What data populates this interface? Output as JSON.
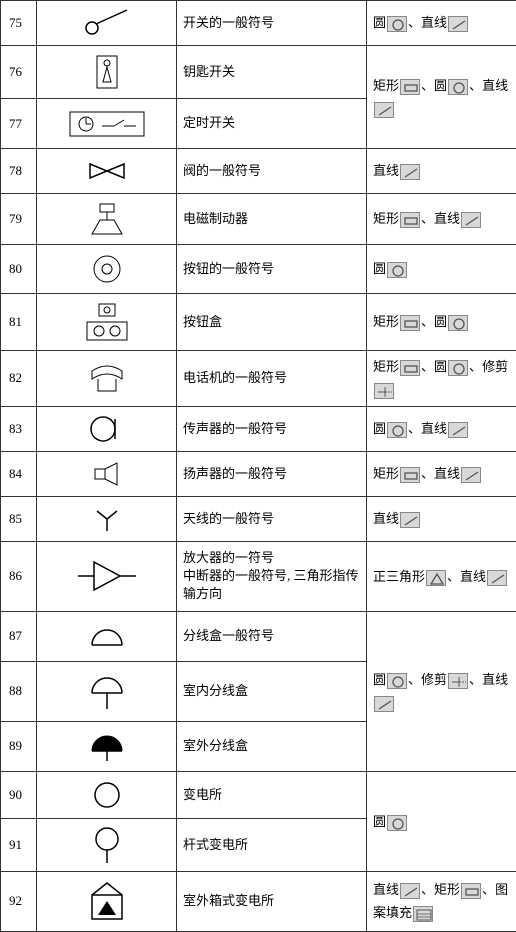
{
  "rows": [
    {
      "num": "75",
      "desc": "开关的一般符号"
    },
    {
      "num": "76",
      "desc": "钥匙开关"
    },
    {
      "num": "77",
      "desc": "定时开关"
    },
    {
      "num": "78",
      "desc": "阀的一般符号"
    },
    {
      "num": "79",
      "desc": "电磁制动器"
    },
    {
      "num": "80",
      "desc": "按钮的一般符号"
    },
    {
      "num": "81",
      "desc": "按钮盒"
    },
    {
      "num": "82",
      "desc": "电话机的一般符号"
    },
    {
      "num": "83",
      "desc": "传声器的一般符号"
    },
    {
      "num": "84",
      "desc": "扬声器的一般符号"
    },
    {
      "num": "85",
      "desc": "天线的一般符号"
    },
    {
      "num": "86",
      "desc": "放大器的一符号\n中断器的一般符号, 三角形指传输方向"
    },
    {
      "num": "87",
      "desc": "分线盒一般符号"
    },
    {
      "num": "88",
      "desc": "室内分线盒"
    },
    {
      "num": "89",
      "desc": "室外分线盒"
    },
    {
      "num": "90",
      "desc": "变电所"
    },
    {
      "num": "91",
      "desc": "杆式变电所"
    },
    {
      "num": "92",
      "desc": "室外箱式变电所"
    }
  ],
  "tool_labels": {
    "circle": "圆",
    "line": "直线",
    "rect": "矩形",
    "tri": "正三角形",
    "trim": "修剪",
    "pattern": "图案填充",
    "sep": "、"
  },
  "tool_groups": {
    "g75": [
      "circle",
      "line"
    ],
    "g76_77": [
      "rect",
      "circle",
      "line"
    ],
    "g78": [
      "line"
    ],
    "g79": [
      "rect",
      "line"
    ],
    "g80": [
      "circle"
    ],
    "g81": [
      "rect",
      "circle"
    ],
    "g82": [
      "rect",
      "circle",
      "trim"
    ],
    "g83": [
      "circle",
      "line"
    ],
    "g84": [
      "rect",
      "line"
    ],
    "g85": [
      "line"
    ],
    "g86": [
      "tri",
      "line"
    ],
    "g87_89": [
      "circle",
      "trim",
      "line"
    ],
    "g90_91": [
      "circle"
    ],
    "g92": [
      "line",
      "rect",
      "pattern"
    ]
  },
  "colors": {
    "border": "#333333",
    "icon_bg": "#d8d8d8",
    "icon_border": "#888888"
  }
}
